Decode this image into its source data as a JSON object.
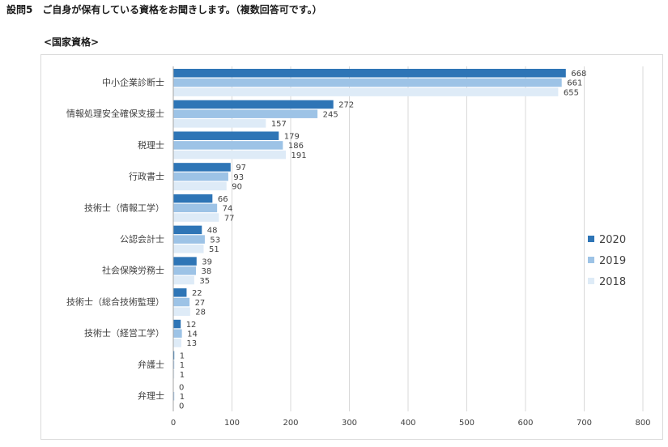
{
  "header": {
    "question_number": "設問5",
    "question_text": "ご自身が保有している資格をお聞きします。（複数回答可です。）"
  },
  "section_title": "<国家資格>",
  "colors": {
    "2020": "#2e75b6",
    "2019": "#9dc3e6",
    "2018": "#deebf7",
    "grid": "#d9d9d9",
    "axis": "#a6a6a6",
    "text": "#404040"
  },
  "chart_data": {
    "type": "bar",
    "orientation": "horizontal",
    "categories": [
      "中小企業診断士",
      "情報処理安全確保支援士",
      "税理士",
      "行政書士",
      "技術士（情報工学）",
      "公認会計士",
      "社会保険労務士",
      "技術士（総合技術監理）",
      "技術士（経営工学）",
      "弁護士",
      "弁理士"
    ],
    "series": [
      {
        "name": "2020",
        "values": [
          668,
          272,
          179,
          97,
          66,
          48,
          39,
          22,
          12,
          1,
          0
        ]
      },
      {
        "name": "2019",
        "values": [
          661,
          245,
          186,
          93,
          74,
          53,
          38,
          27,
          14,
          1,
          1
        ]
      },
      {
        "name": "2018",
        "values": [
          655,
          157,
          191,
          90,
          77,
          51,
          35,
          28,
          13,
          1,
          0
        ]
      }
    ],
    "xlim": [
      0,
      800
    ],
    "xticks": [
      0,
      100,
      200,
      300,
      400,
      500,
      600,
      700,
      800
    ],
    "grid": true,
    "legend": "right"
  }
}
